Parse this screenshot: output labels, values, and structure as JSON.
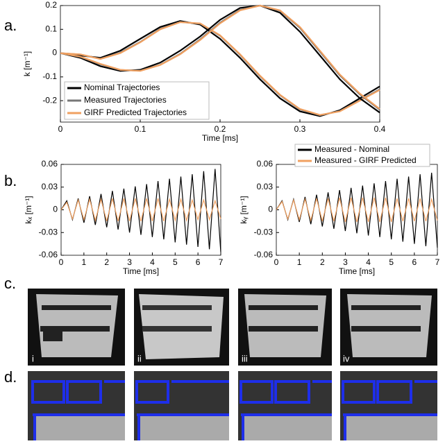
{
  "panel_labels": [
    "a.",
    "b.",
    "c.",
    "d."
  ],
  "image_labels": [
    "i",
    "ii",
    "iii",
    "iv"
  ],
  "chart_data": [
    {
      "type": "line",
      "xlabel": "Time [ms]",
      "ylabel": "k [m⁻¹]",
      "x": [
        0,
        0.025,
        0.05,
        0.075,
        0.1,
        0.125,
        0.15,
        0.175,
        0.2,
        0.225,
        0.25,
        0.275,
        0.3,
        0.325,
        0.35,
        0.375,
        0.4
      ],
      "xlim": [
        0,
        0.4
      ],
      "xticks": [
        0,
        0.1,
        0.2,
        0.3,
        0.4
      ],
      "ylim": [
        -0.29,
        0.2
      ],
      "yticks": [
        -0.2,
        -0.1,
        0,
        0.1,
        0.2
      ],
      "legend": "lower left",
      "series": [
        {
          "name": "Nominal Trajectories",
          "color": "#000000",
          "values": [
            0,
            -0.01,
            -0.02,
            0.01,
            0.06,
            0.11,
            0.135,
            0.12,
            0.06,
            -0.02,
            -0.11,
            -0.19,
            -0.245,
            -0.265,
            -0.24,
            -0.19,
            -0.14
          ]
        },
        {
          "name": "Measured Trajectories",
          "color": "#777777",
          "values": [
            0,
            -0.006,
            -0.024,
            0.002,
            0.047,
            0.102,
            0.131,
            0.124,
            0.073,
            -0.007,
            -0.097,
            -0.177,
            -0.237,
            -0.261,
            -0.244,
            -0.198,
            -0.152
          ]
        },
        {
          "name": "GIRF Predicted Trajectories",
          "color": "#f0a060",
          "values": [
            0,
            -0.005,
            -0.025,
            0.0,
            0.045,
            0.1,
            0.13,
            0.125,
            0.075,
            -0.005,
            -0.095,
            -0.175,
            -0.235,
            -0.26,
            -0.245,
            -0.2,
            -0.155
          ]
        },
        {
          "color": "#000000",
          "values": [
            0,
            -0.02,
            -0.055,
            -0.075,
            -0.07,
            -0.04,
            0.01,
            0.07,
            0.14,
            0.19,
            0.2,
            0.17,
            0.09,
            -0.01,
            -0.11,
            -0.19,
            -0.25
          ]
        },
        {
          "color": "#777777",
          "values": [
            0,
            -0.016,
            -0.047,
            -0.071,
            -0.074,
            -0.049,
            -0.003,
            0.058,
            0.128,
            0.182,
            0.2,
            0.178,
            0.106,
            0.006,
            -0.094,
            -0.174,
            -0.238
          ]
        },
        {
          "color": "#f0a060",
          "values": [
            0,
            -0.015,
            -0.045,
            -0.07,
            -0.075,
            -0.05,
            -0.005,
            0.055,
            0.125,
            0.18,
            0.2,
            0.18,
            0.11,
            0.01,
            -0.09,
            -0.17,
            -0.235
          ]
        }
      ]
    },
    {
      "type": "line",
      "xlabel": "Time [ms]",
      "ylabel": "kₓ [m⁻¹]",
      "x": [
        0,
        0.25,
        0.5,
        0.75,
        1,
        1.25,
        1.5,
        1.75,
        2,
        2.25,
        2.5,
        2.75,
        3,
        3.25,
        3.5,
        3.75,
        4,
        4.25,
        4.5,
        4.75,
        5,
        5.25,
        5.5,
        5.75,
        6,
        6.25,
        6.5,
        6.75,
        7
      ],
      "xlim": [
        0,
        7
      ],
      "xticks": [
        0,
        1,
        2,
        3,
        4,
        5,
        6,
        7
      ],
      "ylim": [
        -0.06,
        0.06
      ],
      "yticks": [
        -0.06,
        -0.03,
        0,
        0.03,
        0.06
      ],
      "series": [
        {
          "color": "#000000",
          "values": [
            0,
            0.012,
            -0.013,
            0.015,
            -0.017,
            0.018,
            -0.02,
            0.021,
            -0.023,
            0.025,
            -0.026,
            0.028,
            -0.03,
            0.031,
            -0.033,
            0.034,
            -0.036,
            0.038,
            -0.039,
            0.041,
            -0.043,
            0.044,
            -0.046,
            0.047,
            -0.049,
            0.051,
            -0.052,
            0.054,
            -0.056
          ]
        },
        {
          "color": "#f0a060",
          "values": [
            0,
            0.01,
            -0.012,
            0.013,
            -0.013,
            0.014,
            -0.014,
            0.014,
            -0.015,
            0.015,
            -0.015,
            0.015,
            -0.015,
            0.015,
            -0.015,
            0.015,
            -0.015,
            0.015,
            -0.015,
            0.014,
            -0.014,
            0.014,
            -0.014,
            0.013,
            -0.013,
            0.013,
            -0.013,
            0.012,
            -0.012
          ]
        }
      ]
    },
    {
      "type": "line",
      "xlabel": "Time [ms]",
      "ylabel": "kᵧ [m⁻¹]",
      "x": [
        0,
        0.25,
        0.5,
        0.75,
        1,
        1.25,
        1.5,
        1.75,
        2,
        2.25,
        2.5,
        2.75,
        3,
        3.25,
        3.5,
        3.75,
        4,
        4.25,
        4.5,
        4.75,
        5,
        5.25,
        5.5,
        5.75,
        6,
        6.25,
        6.5,
        6.75,
        7
      ],
      "xlim": [
        0,
        7
      ],
      "xticks": [
        0,
        1,
        2,
        3,
        4,
        5,
        6,
        7
      ],
      "ylim": [
        -0.06,
        0.06
      ],
      "yticks": [
        -0.06,
        -0.03,
        0,
        0.03,
        0.06
      ],
      "legend": "upper right",
      "series": [
        {
          "name": "Measured - Nominal",
          "color": "#000000",
          "values": [
            0,
            0.012,
            -0.013,
            0.014,
            -0.016,
            0.017,
            -0.019,
            0.02,
            -0.022,
            0.023,
            -0.025,
            0.026,
            -0.028,
            0.029,
            -0.031,
            0.032,
            -0.034,
            0.035,
            -0.036,
            0.038,
            -0.039,
            0.041,
            -0.042,
            0.044,
            -0.045,
            0.047,
            -0.048,
            0.049,
            -0.05
          ]
        },
        {
          "name": "Measured - GIRF Predicted",
          "color": "#f0a060",
          "values": [
            0,
            0.011,
            -0.012,
            0.013,
            -0.013,
            0.014,
            -0.014,
            0.015,
            -0.015,
            0.015,
            -0.015,
            0.016,
            -0.016,
            0.016,
            -0.016,
            0.016,
            -0.016,
            0.016,
            -0.016,
            0.016,
            -0.016,
            0.015,
            -0.015,
            0.015,
            -0.015,
            0.015,
            -0.015,
            0.014,
            -0.014
          ]
        }
      ]
    }
  ]
}
